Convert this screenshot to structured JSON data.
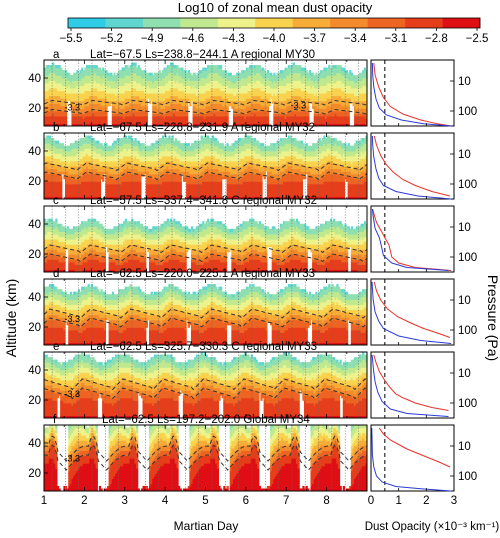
{
  "chart_data": {
    "type": "heatmap",
    "colorbar": {
      "title": "Log10 of zonal mean dust opacity",
      "ticks": [
        "−5.5",
        "−5.2",
        "−4.9",
        "−4.6",
        "−4.3",
        "−4.0",
        "−3.7",
        "−3.4",
        "−3.1",
        "−2.8",
        "−2.5"
      ],
      "range": [
        -5.5,
        -2.5
      ],
      "colors": [
        "#2fcce8",
        "#5fd6cf",
        "#8fdfb0",
        "#c0e98f",
        "#eef28a",
        "#f9d24e",
        "#f8ac38",
        "#f38a2b",
        "#ee6423",
        "#e63e1b",
        "#e00f14"
      ]
    },
    "xlabel": "Martian Day",
    "ylabel_left": "Altitude (km)",
    "ylabel_right": "Pressure (Pa)",
    "profile_xlabel": "Dust Opacity (×10⁻³ km⁻¹)",
    "x_ticks": [
      "1",
      "2",
      "3",
      "4",
      "5",
      "6",
      "7",
      "8"
    ],
    "xlim": [
      1,
      9
    ],
    "y_ticks": [
      "20",
      "40"
    ],
    "ylim": [
      8,
      52
    ],
    "pressure_ticks": [
      "10",
      "100"
    ],
    "profile_ticks": [
      "0",
      "1",
      "2",
      "3"
    ],
    "profile_xlim": [
      0,
      3
    ],
    "profile_dash_x": 0.5,
    "contour_label": "-3.3",
    "panels": [
      {
        "letter": "a",
        "title": "Lat=−67.5 Ls=238.8−244.1 A regional MY30",
        "regime": "regional",
        "base": 16,
        "amp": 3,
        "top": 46,
        "shift": 0.05,
        "contour_labels": 2,
        "profile": {
          "blue": [
            [
              2.9,
              8
            ],
            [
              1.9,
              9.5
            ],
            [
              1.1,
              12
            ],
            [
              0.55,
              15.5
            ],
            [
              0.3,
              20
            ],
            [
              0.18,
              26
            ],
            [
              0.1,
              34
            ],
            [
              0.06,
              42
            ],
            [
              0.05,
              50
            ]
          ],
          "red": [
            [
              2.9,
              8
            ],
            [
              2.4,
              9.5
            ],
            [
              1.8,
              12
            ],
            [
              1.15,
              16
            ],
            [
              0.7,
              21
            ],
            [
              0.45,
              27
            ],
            [
              0.28,
              34
            ],
            [
              0.15,
              42
            ],
            [
              0.1,
              50
            ]
          ]
        }
      },
      {
        "letter": "b",
        "title": "Lat=−67.5 Ls=226.8−231.9 A regional MY32",
        "regime": "regional",
        "base": 21,
        "amp": 5,
        "top": 47,
        "shift": 0.2,
        "contour_labels": 0,
        "profile": {
          "blue": [
            [
              2.9,
              8
            ],
            [
              1.7,
              10
            ],
            [
              0.9,
              13
            ],
            [
              0.45,
              17
            ],
            [
              0.28,
              22
            ],
            [
              0.18,
              28
            ],
            [
              0.1,
              36
            ],
            [
              0.06,
              44
            ],
            [
              0.05,
              50
            ]
          ],
          "red": [
            [
              2.85,
              10
            ],
            [
              2.2,
              13
            ],
            [
              1.6,
              17
            ],
            [
              1.15,
              21
            ],
            [
              0.8,
              26
            ],
            [
              0.55,
              31
            ],
            [
              0.35,
              37
            ],
            [
              0.2,
              44
            ],
            [
              0.12,
              50
            ]
          ]
        }
      },
      {
        "letter": "c",
        "title": "Lat=−57.5 Ls=337.4−341.8 C regional MY32",
        "regime": "regional",
        "base": 15,
        "amp": 5,
        "top": 40,
        "shift": 0.1,
        "contour_labels": 0,
        "profile": {
          "blue": [
            [
              2.8,
              9
            ],
            [
              1.3,
              11
            ],
            [
              0.75,
              14
            ],
            [
              0.45,
              19
            ],
            [
              0.38,
              25
            ],
            [
              0.3,
              31
            ],
            [
              0.15,
              37
            ],
            [
              0.08,
              45
            ],
            [
              0.05,
              50
            ]
          ],
          "red": [
            [
              2.9,
              9
            ],
            [
              1.6,
              11
            ],
            [
              1.0,
              14
            ],
            [
              0.75,
              18
            ],
            [
              0.7,
              22
            ],
            [
              0.65,
              26
            ],
            [
              0.5,
              31
            ],
            [
              0.35,
              36
            ],
            [
              0.2,
              41
            ],
            [
              0.1,
              47
            ],
            [
              0.06,
              50
            ]
          ]
        }
      },
      {
        "letter": "d",
        "title": "Lat=−62.5 Ls=220.0−225.1 A regional MY33",
        "regime": "regional",
        "base": 20,
        "amp": 6,
        "top": 45,
        "shift": 0.1,
        "contour_labels": 1,
        "profile": {
          "blue": [
            [
              2.9,
              9
            ],
            [
              1.8,
              11
            ],
            [
              1.0,
              14
            ],
            [
              0.45,
              19
            ],
            [
              0.28,
              24
            ],
            [
              0.15,
              30
            ],
            [
              0.08,
              38
            ],
            [
              0.05,
              46
            ],
            [
              0.04,
              50
            ]
          ],
          "red": [
            [
              2.85,
              13
            ],
            [
              2.4,
              16
            ],
            [
              1.9,
              19
            ],
            [
              1.4,
              23
            ],
            [
              0.95,
              27
            ],
            [
              0.6,
              32
            ],
            [
              0.35,
              38
            ],
            [
              0.2,
              44
            ],
            [
              0.12,
              50
            ]
          ]
        }
      },
      {
        "letter": "e",
        "title": "Lat=−62.5 Ls=325.7−330.3 C regional MY33",
        "regime": "regional",
        "base": 21,
        "amp": 7,
        "top": 48,
        "shift": 0.3,
        "contour_labels": 1,
        "profile": {
          "blue": [
            [
              2.8,
              9
            ],
            [
              1.3,
              11
            ],
            [
              0.7,
              14
            ],
            [
              0.4,
              19
            ],
            [
              0.25,
              25
            ],
            [
              0.15,
              32
            ],
            [
              0.09,
              40
            ],
            [
              0.05,
              48
            ],
            [
              0.04,
              50
            ]
          ],
          "red": [
            [
              2.8,
              13
            ],
            [
              2.2,
              15
            ],
            [
              1.6,
              18
            ],
            [
              1.35,
              20
            ],
            [
              1.15,
              21.5
            ],
            [
              0.9,
              24
            ],
            [
              0.7,
              28
            ],
            [
              0.5,
              33
            ],
            [
              0.3,
              39
            ],
            [
              0.18,
              45
            ],
            [
              0.1,
              50
            ]
          ]
        }
      },
      {
        "letter": "f",
        "title": "Lat=−62.5 Ls=197.2−202.0 Global MY34",
        "regime": "global",
        "base": 22,
        "amp": 10,
        "top": 50,
        "shift": 0.45,
        "contour_labels": 1,
        "profile": {
          "blue": [
            [
              2.9,
              8
            ],
            [
              1.8,
              9.5
            ],
            [
              0.9,
              11
            ],
            [
              0.4,
              14
            ],
            [
              0.2,
              18
            ],
            [
              0.1,
              24
            ],
            [
              0.05,
              32
            ],
            [
              0.04,
              42
            ],
            [
              0.03,
              50
            ]
          ],
          "red": [
            [
              2.85,
              24
            ],
            [
              2.5,
              27
            ],
            [
              2.1,
              30
            ],
            [
              1.7,
              33
            ],
            [
              1.3,
              36
            ],
            [
              1.0,
              39
            ],
            [
              0.7,
              42
            ],
            [
              0.45,
              46
            ],
            [
              0.3,
              50
            ]
          ]
        }
      }
    ]
  }
}
